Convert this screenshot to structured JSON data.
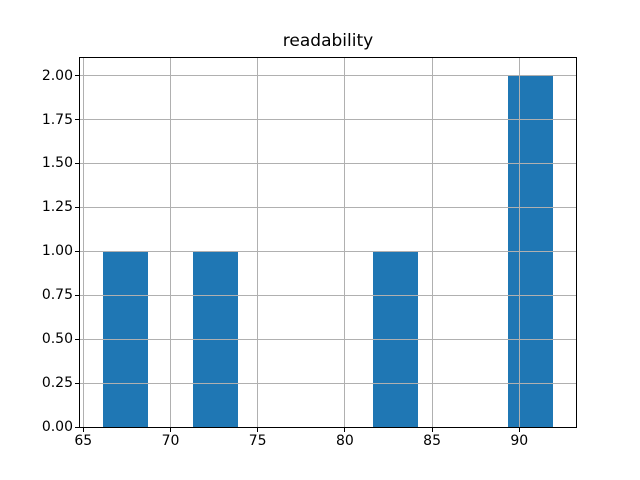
{
  "title": "readability",
  "colors": {
    "bar": "#1f77b4",
    "grid": "#b0b0b0",
    "spine": "#000000",
    "background": "#ffffff"
  },
  "chart_data": {
    "type": "bar",
    "subtype": "histogram",
    "title": "readability",
    "xlabel": "",
    "ylabel": "",
    "bin_edges": [
      66.1,
      68.69,
      71.27,
      73.86,
      76.44,
      79.03,
      81.62,
      84.2,
      86.79,
      89.37,
      91.96
    ],
    "counts": [
      1,
      0,
      1,
      0,
      0,
      0,
      1,
      0,
      0,
      2
    ],
    "xlim": [
      64.81,
      93.25
    ],
    "ylim": [
      0,
      2.1
    ],
    "x_ticks": [
      65,
      70,
      75,
      80,
      85,
      90
    ],
    "x_tick_labels": [
      "65",
      "70",
      "75",
      "80",
      "85",
      "90"
    ],
    "y_ticks": [
      0,
      0.25,
      0.5,
      0.75,
      1,
      1.25,
      1.5,
      1.75,
      2
    ],
    "y_tick_labels": [
      "0.00",
      "0.25",
      "0.50",
      "0.75",
      "1.00",
      "1.25",
      "1.50",
      "1.75",
      "2.00"
    ],
    "grid": true,
    "grid_over_data": true,
    "legend": false,
    "bar_color": "#1f77b4",
    "grid_color": "#b0b0b0"
  }
}
